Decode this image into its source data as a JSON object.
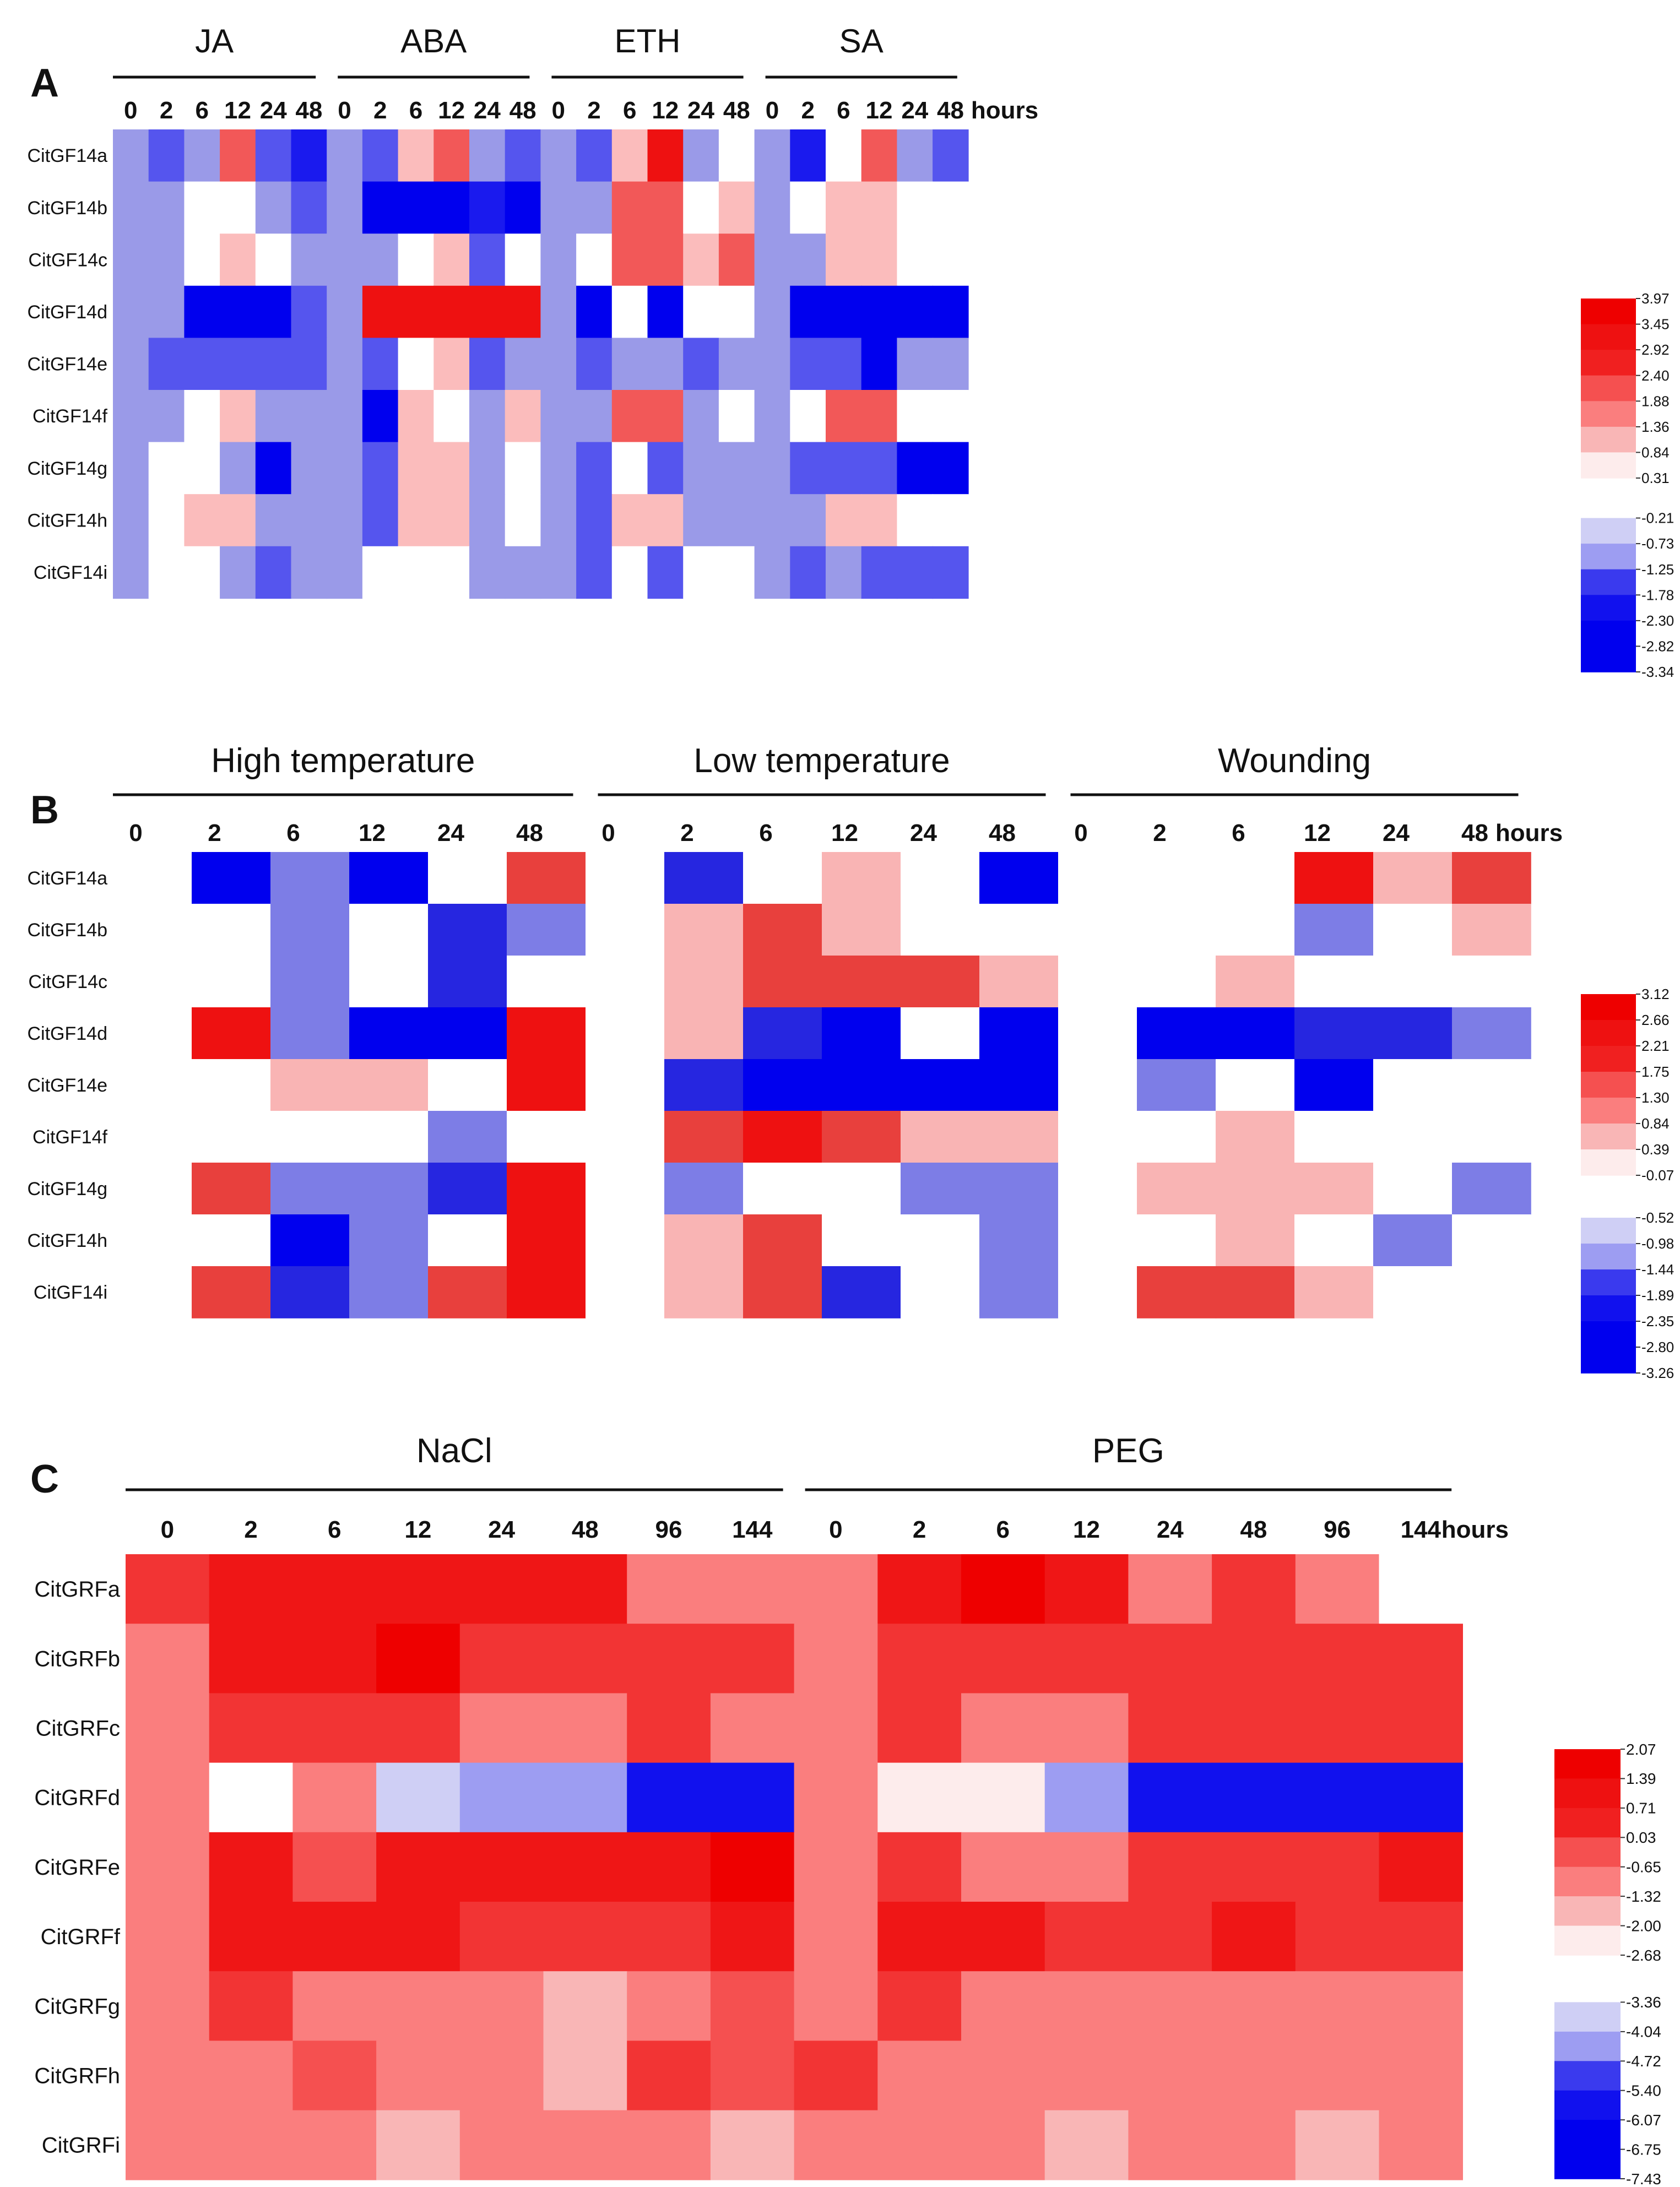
{
  "chart_data": [
    {
      "type": "heatmap",
      "panel": "A",
      "rows": [
        "CitGF14a",
        "CitGF14b",
        "CitGF14c",
        "CitGF14d",
        "CitGF14e",
        "CitGF14f",
        "CitGF14g",
        "CitGF14h",
        "CitGF14i"
      ],
      "groups": [
        {
          "name": "JA",
          "timepoints": [
            "0",
            "2",
            "6",
            "12",
            "24",
            "48"
          ]
        },
        {
          "name": "ABA",
          "timepoints": [
            "0",
            "2",
            "6",
            "12",
            "24",
            "48"
          ]
        },
        {
          "name": "ETH",
          "timepoints": [
            "0",
            "2",
            "6",
            "12",
            "24",
            "48"
          ]
        },
        {
          "name": "SA",
          "timepoints": [
            "0",
            "2",
            "6",
            "12",
            "24",
            "48"
          ]
        }
      ],
      "time_unit": "hours",
      "legend_ticks": [
        "3.97",
        "3.45",
        "2.92",
        "2.40",
        "1.88",
        "1.36",
        "0.84",
        "0.31",
        "-0.21",
        "-0.73",
        "-1.25",
        "-1.78",
        "-2.30",
        "-2.82",
        "-3.34"
      ],
      "palette": {
        "L": "#9a9ae8",
        "M": "#5555ee",
        "B": "#1a1aee",
        "D": "#0000ee",
        "W": "#ffffff",
        "p": "#fbbcbc",
        "r": "#f25858",
        "R": "#ee1111"
      },
      "cells": [
        [
          "L",
          "M",
          "L",
          "r",
          "M",
          "B",
          "L",
          "M",
          "p",
          "r",
          "L",
          "M",
          "L",
          "M",
          "p",
          "R",
          "L",
          "W",
          "L",
          "B",
          "W",
          "r",
          "L",
          "M"
        ],
        [
          "L",
          "L",
          "W",
          "W",
          "L",
          "M",
          "L",
          "D",
          "D",
          "D",
          "B",
          "D",
          "L",
          "L",
          "r",
          "r",
          "W",
          "p",
          "L",
          "W",
          "p",
          "p",
          "W",
          "W"
        ],
        [
          "L",
          "L",
          "W",
          "p",
          "W",
          "L",
          "L",
          "L",
          "W",
          "p",
          "M",
          "W",
          "L",
          "W",
          "r",
          "r",
          "p",
          "r",
          "L",
          "L",
          "p",
          "p",
          "W",
          "W"
        ],
        [
          "L",
          "L",
          "D",
          "D",
          "D",
          "M",
          "L",
          "R",
          "R",
          "R",
          "R",
          "R",
          "L",
          "D",
          "W",
          "D",
          "W",
          "W",
          "L",
          "D",
          "D",
          "D",
          "D",
          "D"
        ],
        [
          "L",
          "M",
          "M",
          "M",
          "M",
          "M",
          "L",
          "M",
          "W",
          "p",
          "M",
          "L",
          "L",
          "M",
          "L",
          "L",
          "M",
          "L",
          "L",
          "M",
          "M",
          "D",
          "L",
          "L"
        ],
        [
          "L",
          "L",
          "W",
          "p",
          "L",
          "L",
          "L",
          "D",
          "p",
          "W",
          "L",
          "p",
          "L",
          "L",
          "r",
          "r",
          "L",
          "W",
          "L",
          "W",
          "r",
          "r",
          "W",
          "W"
        ],
        [
          "L",
          "W",
          "W",
          "L",
          "D",
          "L",
          "L",
          "M",
          "p",
          "p",
          "L",
          "W",
          "L",
          "M",
          "W",
          "M",
          "L",
          "L",
          "L",
          "M",
          "M",
          "M",
          "D",
          "D"
        ],
        [
          "L",
          "W",
          "p",
          "p",
          "L",
          "L",
          "L",
          "M",
          "p",
          "p",
          "L",
          "W",
          "L",
          "M",
          "p",
          "p",
          "L",
          "L",
          "L",
          "L",
          "p",
          "p",
          "W",
          "W"
        ],
        [
          "L",
          "W",
          "W",
          "L",
          "M",
          "L",
          "L",
          "W",
          "W",
          "W",
          "L",
          "L",
          "L",
          "M",
          "W",
          "M",
          "W",
          "W",
          "L",
          "M",
          "L",
          "M",
          "M",
          "M"
        ]
      ]
    },
    {
      "type": "heatmap",
      "panel": "B",
      "rows": [
        "CitGF14a",
        "CitGF14b",
        "CitGF14c",
        "CitGF14d",
        "CitGF14e",
        "CitGF14f",
        "CitGF14g",
        "CitGF14h",
        "CitGF14i"
      ],
      "groups": [
        {
          "name": "High temperature",
          "timepoints": [
            "0",
            "2",
            "6",
            "12",
            "24",
            "48"
          ]
        },
        {
          "name": "Low temperature",
          "timepoints": [
            "0",
            "2",
            "6",
            "12",
            "24",
            "48"
          ]
        },
        {
          "name": "Wounding",
          "timepoints": [
            "0",
            "2",
            "6",
            "12",
            "24",
            "48"
          ]
        }
      ],
      "time_unit": "hours",
      "legend_ticks": [
        "3.12",
        "2.66",
        "2.21",
        "1.75",
        "1.30",
        "0.84",
        "0.39",
        "-0.07",
        "-0.52",
        "-0.98",
        "-1.44",
        "-1.89",
        "-2.35",
        "-2.80",
        "-3.26"
      ],
      "palette": {
        "L": "#7d7de6",
        "B": "#2626e0",
        "D": "#0000ee",
        "W": "#ffffff",
        "p": "#f9b4b4",
        "r": "#e8403d",
        "R": "#ee1111"
      },
      "cells": [
        [
          "W",
          "D",
          "L",
          "D",
          "W",
          "r",
          "W",
          "B",
          "W",
          "p",
          "W",
          "D",
          "W",
          "W",
          "W",
          "R",
          "p",
          "r"
        ],
        [
          "W",
          "W",
          "L",
          "W",
          "B",
          "L",
          "W",
          "p",
          "r",
          "p",
          "W",
          "W",
          "W",
          "W",
          "W",
          "L",
          "W",
          "p"
        ],
        [
          "W",
          "W",
          "L",
          "W",
          "B",
          "W",
          "W",
          "p",
          "r",
          "r",
          "r",
          "p",
          "W",
          "W",
          "p",
          "W",
          "W",
          "W"
        ],
        [
          "W",
          "R",
          "L",
          "D",
          "D",
          "R",
          "W",
          "p",
          "B",
          "D",
          "W",
          "D",
          "W",
          "D",
          "D",
          "B",
          "B",
          "L"
        ],
        [
          "W",
          "W",
          "p",
          "p",
          "W",
          "R",
          "W",
          "B",
          "D",
          "D",
          "D",
          "D",
          "W",
          "L",
          "W",
          "D",
          "W",
          "W"
        ],
        [
          "W",
          "W",
          "W",
          "W",
          "L",
          "W",
          "W",
          "r",
          "R",
          "r",
          "p",
          "p",
          "W",
          "W",
          "p",
          "W",
          "W",
          "W"
        ],
        [
          "W",
          "r",
          "L",
          "L",
          "B",
          "R",
          "W",
          "L",
          "W",
          "W",
          "L",
          "L",
          "W",
          "p",
          "p",
          "p",
          "W",
          "L"
        ],
        [
          "W",
          "W",
          "D",
          "L",
          "W",
          "R",
          "W",
          "p",
          "r",
          "W",
          "W",
          "L",
          "W",
          "W",
          "p",
          "W",
          "L",
          "W"
        ],
        [
          "W",
          "r",
          "B",
          "L",
          "r",
          "R",
          "W",
          "p",
          "r",
          "B",
          "W",
          "L",
          "W",
          "r",
          "r",
          "p",
          "W",
          "W"
        ]
      ]
    },
    {
      "type": "heatmap",
      "panel": "C",
      "rows": [
        "CitGRFa",
        "CitGRFb",
        "CitGRFc",
        "CitGRFd",
        "CitGRFe",
        "CitGRFf",
        "CitGRFg",
        "CitGRFh",
        "CitGRFi"
      ],
      "groups": [
        {
          "name": "NaCl",
          "timepoints": [
            "0",
            "2",
            "6",
            "12",
            "24",
            "48",
            "96",
            "144"
          ]
        },
        {
          "name": "PEG",
          "timepoints": [
            "0",
            "2",
            "6",
            "12",
            "24",
            "48",
            "96",
            "144"
          ]
        }
      ],
      "time_unit": "hours",
      "legend_ticks": [
        "2.07",
        "1.39",
        "0.71",
        "0.03",
        "-0.65",
        "-1.32",
        "-2.00",
        "-2.68",
        "-3.36",
        "-4.04",
        "-4.72",
        "-5.40",
        "-6.07",
        "-6.75",
        "-7.43"
      ],
      "palette": {
        "S": "#fa7e7e",
        "M": "#f55050",
        "r": "#f23434",
        "R": "#ef1616",
        "X": "#ee0000",
        "P": "#f9b6b6",
        "w": "#fdecec",
        "W": "#ffffff",
        "V": "#cfcff5",
        "L": "#9d9df2",
        "D": "#1111ee"
      },
      "cells": [
        [
          "r",
          "R",
          "R",
          "R",
          "R",
          "R",
          "S",
          "S",
          "S",
          "R",
          "X",
          "R",
          "S",
          "r",
          "S",
          "W"
        ],
        [
          "S",
          "R",
          "R",
          "X",
          "r",
          "r",
          "r",
          "r",
          "S",
          "r",
          "r",
          "r",
          "r",
          "r",
          "r",
          "r"
        ],
        [
          "S",
          "r",
          "r",
          "r",
          "S",
          "S",
          "r",
          "S",
          "S",
          "r",
          "S",
          "S",
          "r",
          "r",
          "r",
          "r"
        ],
        [
          "S",
          "W",
          "S",
          "V",
          "L",
          "L",
          "D",
          "D",
          "S",
          "w",
          "w",
          "L",
          "D",
          "D",
          "D",
          "D"
        ],
        [
          "S",
          "R",
          "M",
          "R",
          "R",
          "R",
          "R",
          "X",
          "S",
          "r",
          "S",
          "S",
          "r",
          "r",
          "r",
          "R"
        ],
        [
          "S",
          "R",
          "R",
          "R",
          "r",
          "r",
          "r",
          "R",
          "S",
          "R",
          "R",
          "r",
          "r",
          "R",
          "r",
          "r"
        ],
        [
          "S",
          "r",
          "S",
          "S",
          "S",
          "P",
          "S",
          "M",
          "S",
          "r",
          "S",
          "S",
          "S",
          "S",
          "S",
          "S"
        ],
        [
          "S",
          "S",
          "M",
          "S",
          "S",
          "P",
          "r",
          "M",
          "r",
          "S",
          "S",
          "S",
          "S",
          "S",
          "S",
          "S"
        ],
        [
          "S",
          "S",
          "S",
          "P",
          "S",
          "S",
          "S",
          "P",
          "S",
          "S",
          "S",
          "P",
          "S",
          "S",
          "P",
          "S"
        ]
      ]
    }
  ]
}
